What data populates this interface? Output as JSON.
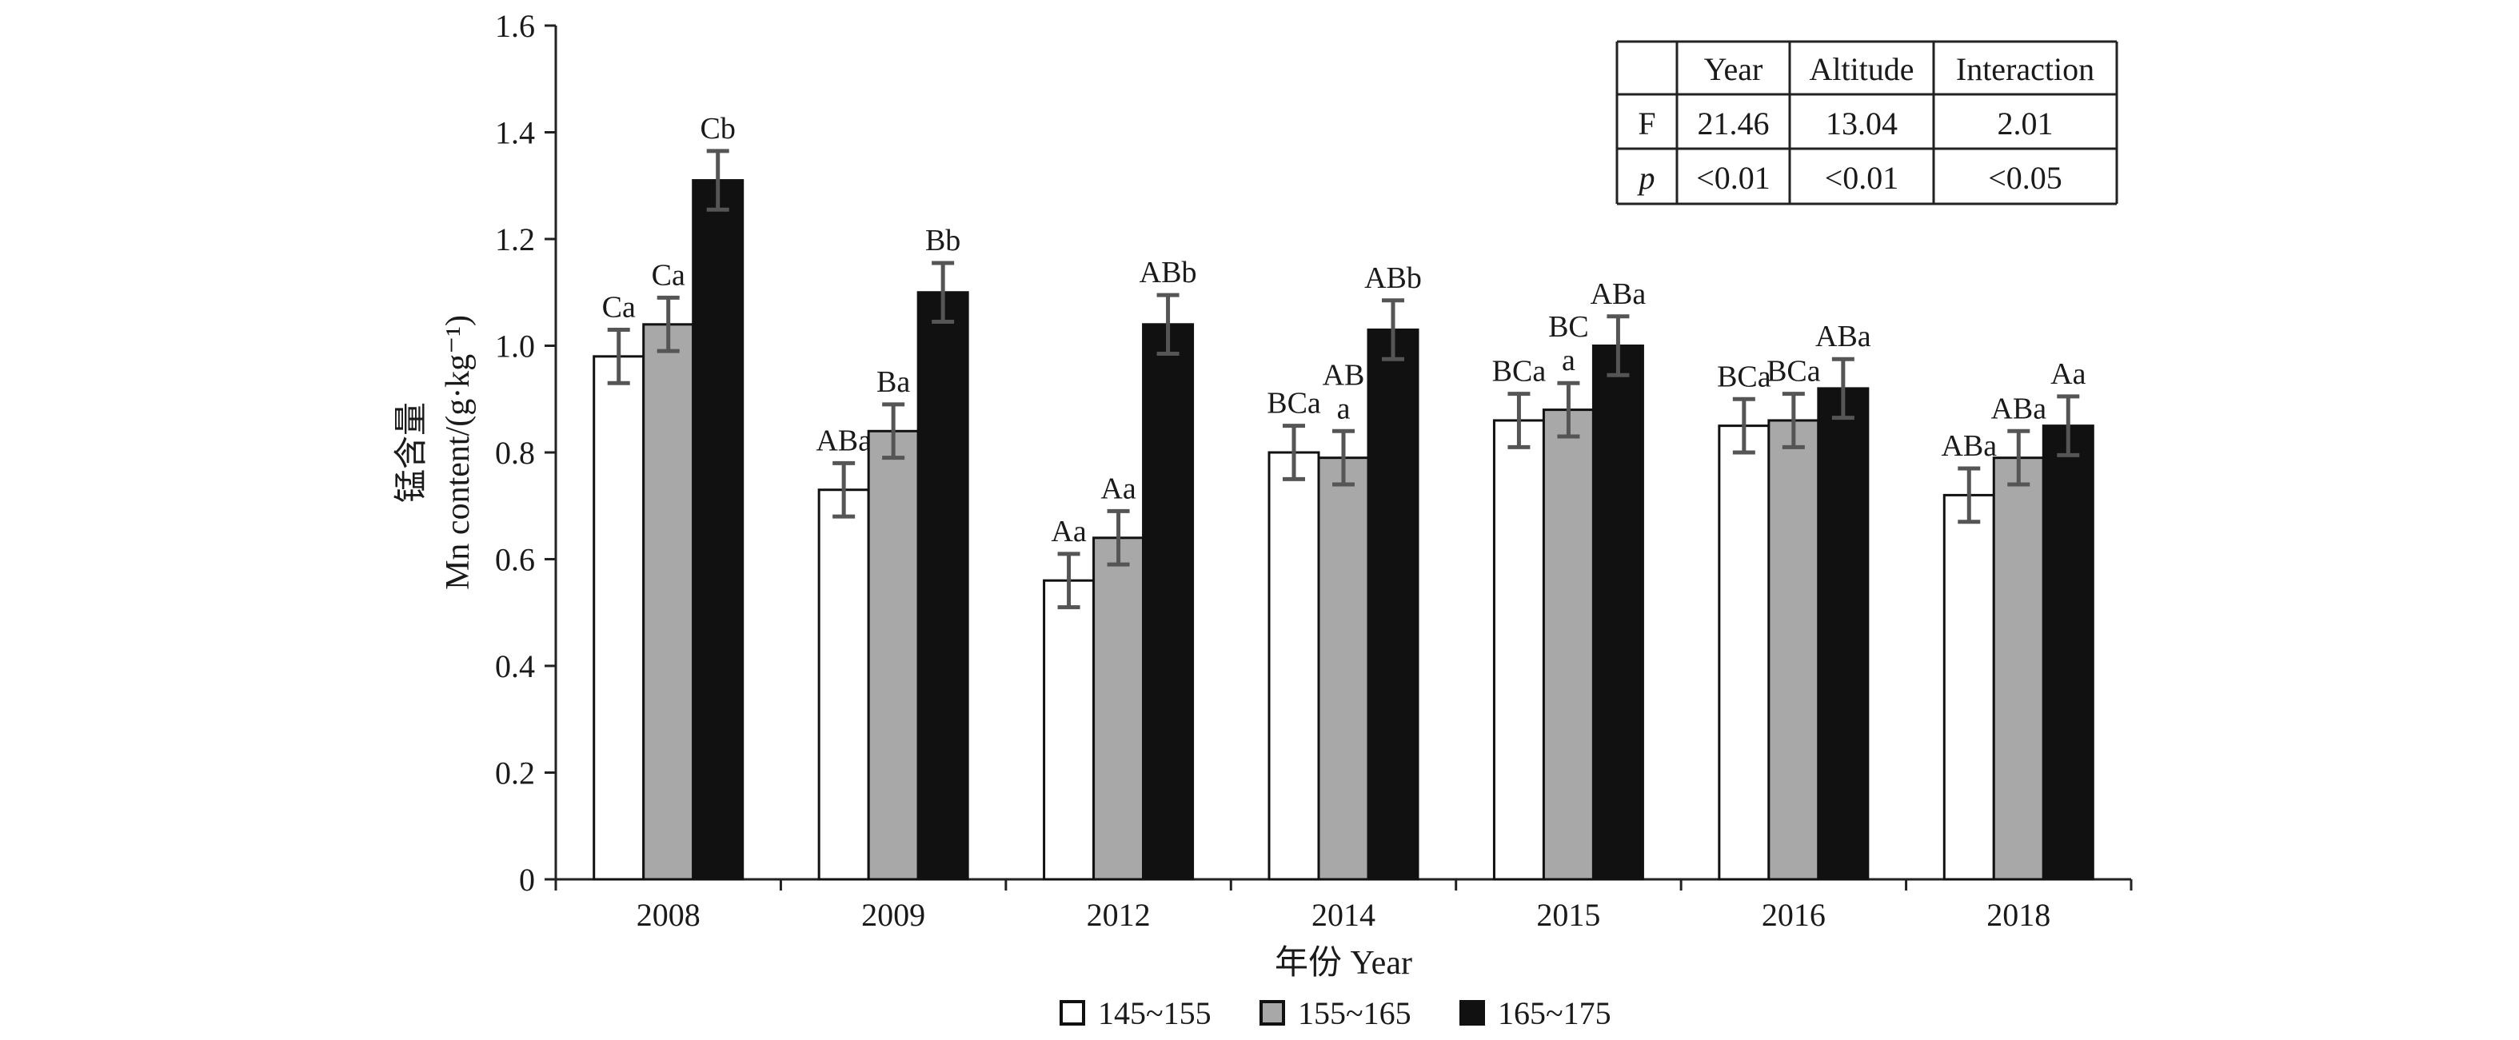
{
  "chart_data": {
    "type": "bar",
    "categories": [
      "2008",
      "2009",
      "2012",
      "2014",
      "2015",
      "2016",
      "2018"
    ],
    "series": [
      {
        "name": "145~155",
        "color": "#ffffff",
        "values": [
          0.98,
          0.73,
          0.56,
          0.8,
          0.86,
          0.85,
          0.72
        ],
        "errors": [
          0.05,
          0.05,
          0.05,
          0.05,
          0.05,
          0.05,
          0.05
        ],
        "labels": [
          "Ca",
          "ABa",
          "Aa",
          "BCa",
          "BCa",
          "BCa",
          "ABa"
        ]
      },
      {
        "name": "155~165",
        "color": "#a8a8a8",
        "values": [
          1.04,
          0.84,
          0.64,
          0.79,
          0.88,
          0.86,
          0.79
        ],
        "errors": [
          0.05,
          0.05,
          0.05,
          0.05,
          0.05,
          0.05,
          0.05
        ],
        "labels": [
          "Ca",
          "Ba",
          "Aa",
          "AB\na",
          "BC\na",
          "BCa",
          "ABa"
        ]
      },
      {
        "name": "165~175",
        "color": "#111111",
        "values": [
          1.31,
          1.1,
          1.04,
          1.03,
          1.0,
          0.92,
          0.85
        ],
        "errors": [
          0.055,
          0.055,
          0.055,
          0.055,
          0.055,
          0.055,
          0.055
        ],
        "labels": [
          "Cb",
          "Bb",
          "ABb",
          "ABb",
          "ABa",
          "ABa",
          "Aa"
        ]
      }
    ],
    "y_ticks": [
      "0",
      "0.2",
      "0.4",
      "0.6",
      "0.8",
      "1.0",
      "1.2",
      "1.4",
      "1.6"
    ],
    "ylim": [
      0,
      1.6
    ],
    "ylabel_cn": "锰含量",
    "ylabel_en": "Mn content/(g·kg⁻¹)",
    "xlabel": "年份 Year",
    "legend_position": "bottom",
    "grid": false
  },
  "stats_table": {
    "headers": [
      "",
      "Year",
      "Altitude",
      "Interaction"
    ],
    "rows": [
      [
        "F",
        "21.46",
        "13.04",
        "2.01"
      ],
      [
        "p",
        "<0.01",
        "<0.01",
        "<0.05"
      ]
    ]
  }
}
